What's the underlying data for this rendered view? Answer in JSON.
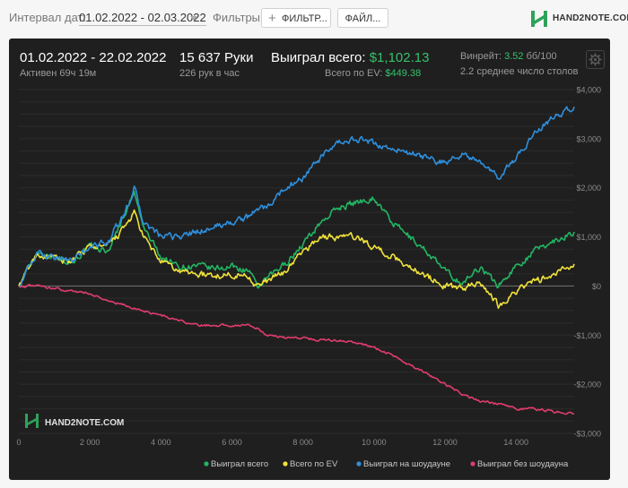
{
  "toolbar": {
    "date_interval_label": "Интервал дат:",
    "date_interval_value": "01.02.2022 - 02.03.2022",
    "filters_label": "Фильтры:",
    "filter_button": "ФИЛЬТР...",
    "file_button": "ФАЙЛ...",
    "logo_text": "HAND2NOTE.COM"
  },
  "summary": {
    "period": "01.02.2022 - 22.02.2022",
    "active": "Активен 69ч 19м",
    "hands": "15 637 Руки",
    "hands_per_hour": "226 рук в час",
    "won_label": "Выиграл всего:",
    "won_value": "$1,102.13",
    "ev_label": "Всего по EV:",
    "ev_value": "$449.38",
    "winrate_label": "Винрейт:",
    "winrate_value": "3.52",
    "winrate_unit": "бб/100",
    "tables": "2.2 среднее число столов"
  },
  "watermark": "HAND2NOTE.COM",
  "colors": {
    "won": "#22b563",
    "ev": "#f0e23a",
    "showdown": "#2f8fdc",
    "nonshowdown": "#e03c6e",
    "accent_green": "#35c26a"
  },
  "chart_data": {
    "type": "line",
    "xlim": [
      0,
      15637
    ],
    "ylim": [
      -3000,
      4000
    ],
    "x_ticks": [
      0,
      2000,
      4000,
      6000,
      8000,
      10000,
      12000,
      14000
    ],
    "x_tick_labels": [
      "0",
      "2 000",
      "4 000",
      "6 000",
      "8 000",
      "10 000",
      "12 000",
      "14 000"
    ],
    "y_ticks": [
      4000,
      3000,
      2000,
      1000,
      0,
      -1000,
      -2000,
      -3000
    ],
    "y_tick_labels": [
      "$4,000",
      "$3,000",
      "$2,000",
      "$1,000",
      "$0",
      "-$1,000",
      "-$2,000",
      "-$3,000"
    ],
    "x": [
      0,
      500,
      1000,
      1500,
      2000,
      2500,
      3000,
      3250,
      3500,
      4000,
      4500,
      5000,
      5500,
      6000,
      6500,
      6700,
      7000,
      7500,
      8000,
      8500,
      9000,
      9500,
      10000,
      10500,
      11000,
      11500,
      12000,
      12500,
      13000,
      13500,
      14000,
      14500,
      15000,
      15637
    ],
    "series": [
      {
        "name": "Выиграл всего",
        "values": [
          0,
          700,
          600,
          500,
          800,
          700,
          1500,
          1900,
          1200,
          600,
          400,
          400,
          350,
          400,
          300,
          -50,
          150,
          450,
          850,
          1300,
          1600,
          1700,
          1800,
          1300,
          1000,
          700,
          300,
          50,
          400,
          0,
          400,
          700,
          900,
          1102
        ]
      },
      {
        "name": "Всего по EV",
        "values": [
          0,
          650,
          550,
          500,
          800,
          800,
          1200,
          1500,
          1000,
          500,
          300,
          250,
          200,
          250,
          200,
          0,
          100,
          300,
          700,
          1000,
          1000,
          1000,
          800,
          600,
          400,
          200,
          0,
          -50,
          100,
          -400,
          -100,
          100,
          200,
          449
        ]
      },
      {
        "name": "Выиграл на шоудауне",
        "values": [
          0,
          650,
          600,
          500,
          800,
          900,
          1500,
          2000,
          1300,
          1000,
          1000,
          1100,
          1200,
          1300,
          1400,
          1600,
          1600,
          2000,
          2200,
          2600,
          2900,
          3000,
          2900,
          2800,
          2700,
          2600,
          2500,
          2700,
          2500,
          2200,
          2600,
          3100,
          3400,
          3650
        ]
      },
      {
        "name": "Выиграл без шоудауна",
        "values": [
          0,
          0,
          -50,
          -100,
          -150,
          -300,
          -400,
          -450,
          -500,
          -600,
          -700,
          -800,
          -800,
          -800,
          -800,
          -850,
          -1000,
          -1050,
          -1050,
          -1100,
          -1100,
          -1150,
          -1250,
          -1400,
          -1600,
          -1800,
          -2000,
          -2200,
          -2350,
          -2400,
          -2500,
          -2500,
          -2550,
          -2600
        ]
      }
    ]
  }
}
